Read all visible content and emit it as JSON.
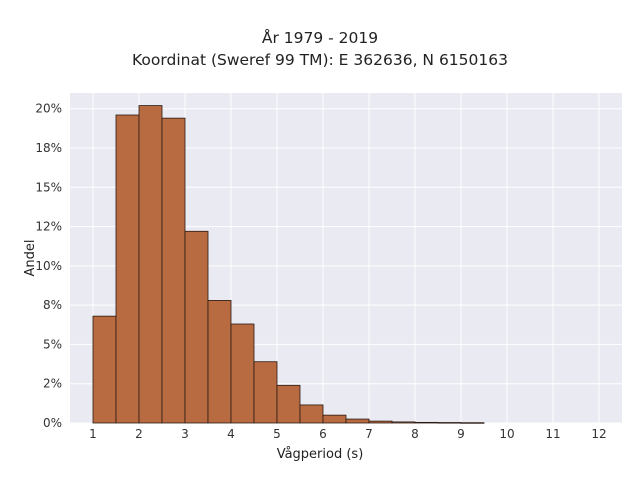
{
  "chart_data": {
    "type": "bar",
    "title": "År 1979 - 2019",
    "subtitle": "Koordinat (Sweref 99 TM): E 362636, N 6150163",
    "xlabel": "Vågperiod (s)",
    "ylabel": "Andel",
    "xlim": [
      0.5,
      12.5
    ],
    "ylim": [
      0,
      21
    ],
    "x_ticks": [
      1,
      2,
      3,
      4,
      5,
      6,
      7,
      8,
      9,
      10,
      11,
      12
    ],
    "x_tick_labels": [
      "1",
      "2",
      "3",
      "4",
      "5",
      "6",
      "7",
      "8",
      "9",
      "10",
      "11",
      "12"
    ],
    "y_ticks": [
      0,
      2.5,
      5,
      7.5,
      10,
      12.5,
      15,
      17.5,
      20
    ],
    "y_tick_labels": [
      "0%",
      "2%",
      "5%",
      "8%",
      "10%",
      "12%",
      "15%",
      "18%",
      "20%"
    ],
    "bin_width": 0.5,
    "bins": [
      {
        "start": 1.0,
        "value": 6.8
      },
      {
        "start": 1.5,
        "value": 19.6
      },
      {
        "start": 2.0,
        "value": 20.2
      },
      {
        "start": 2.5,
        "value": 19.4
      },
      {
        "start": 3.0,
        "value": 12.2
      },
      {
        "start": 3.5,
        "value": 7.8
      },
      {
        "start": 4.0,
        "value": 6.3
      },
      {
        "start": 4.5,
        "value": 3.9
      },
      {
        "start": 5.0,
        "value": 2.4
      },
      {
        "start": 5.5,
        "value": 1.15
      },
      {
        "start": 6.0,
        "value": 0.5
      },
      {
        "start": 6.5,
        "value": 0.25
      },
      {
        "start": 7.0,
        "value": 0.12
      },
      {
        "start": 7.5,
        "value": 0.07
      },
      {
        "start": 8.0,
        "value": 0.04
      },
      {
        "start": 8.5,
        "value": 0.03
      },
      {
        "start": 9.0,
        "value": 0.02
      }
    ],
    "grid": true,
    "colors": {
      "plot_background": "#eaeaf2",
      "bar_fill": "#b86a40",
      "bar_edge": "#2a1a12",
      "grid": "#ffffff"
    }
  }
}
